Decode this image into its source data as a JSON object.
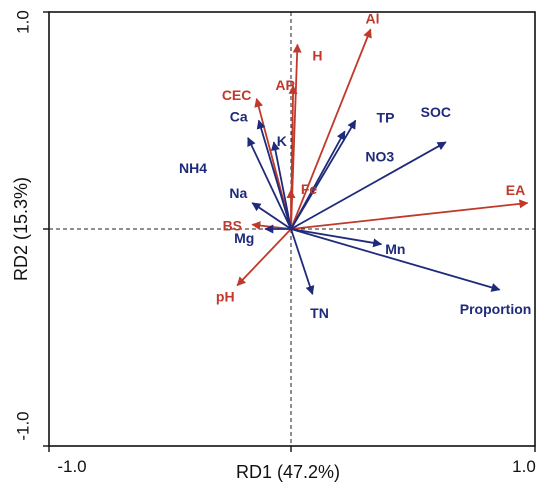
{
  "chart_data": {
    "type": "scatter",
    "subtype": "rda-biplot",
    "title": "",
    "xlabel": "RD1 (47.2%)",
    "ylabel": "RD2 (15.3%)",
    "xlim": [
      -1.0,
      1.0
    ],
    "ylim": [
      -1.0,
      1.0
    ],
    "x_ticks": [
      "-1.0",
      "1.0"
    ],
    "y_ticks": [
      "1.0",
      "-1.0"
    ],
    "grid": false,
    "zero_lines": "dashed",
    "colors": {
      "red_group": "#c0392b",
      "blue_group": "#1f2a7a"
    },
    "series": [
      {
        "color_group": "red_group",
        "vectors": [
          {
            "label": "H",
            "x": 0.03,
            "y": 0.85
          },
          {
            "label": "Al",
            "x": 0.37,
            "y": 0.92
          },
          {
            "label": "CEC",
            "x": -0.16,
            "y": 0.6
          },
          {
            "label": "AP",
            "x": 0.01,
            "y": 0.66
          },
          {
            "label": "Fe",
            "x": 0.0,
            "y": 0.18
          },
          {
            "label": "EA",
            "x": 1.1,
            "y": 0.12
          },
          {
            "label": "BS",
            "x": -0.18,
            "y": 0.02
          },
          {
            "label": "pH",
            "x": -0.25,
            "y": -0.26
          }
        ]
      },
      {
        "color_group": "blue_group",
        "vectors": [
          {
            "label": "Ca",
            "x": -0.15,
            "y": 0.5
          },
          {
            "label": "K",
            "x": -0.08,
            "y": 0.4
          },
          {
            "label": "NH4",
            "x": -0.2,
            "y": 0.42
          },
          {
            "label": "TP",
            "x": 0.3,
            "y": 0.5
          },
          {
            "label": "NO3",
            "x": 0.25,
            "y": 0.45
          },
          {
            "label": "SOC",
            "x": 0.72,
            "y": 0.4
          },
          {
            "label": "Na",
            "x": -0.18,
            "y": 0.12
          },
          {
            "label": "Mg",
            "x": -0.12,
            "y": 0.0
          },
          {
            "label": "Mn",
            "x": 0.42,
            "y": -0.07
          },
          {
            "label": "TN",
            "x": 0.1,
            "y": -0.3
          },
          {
            "label": "Proportion",
            "x": 0.97,
            "y": -0.28
          }
        ]
      }
    ]
  }
}
